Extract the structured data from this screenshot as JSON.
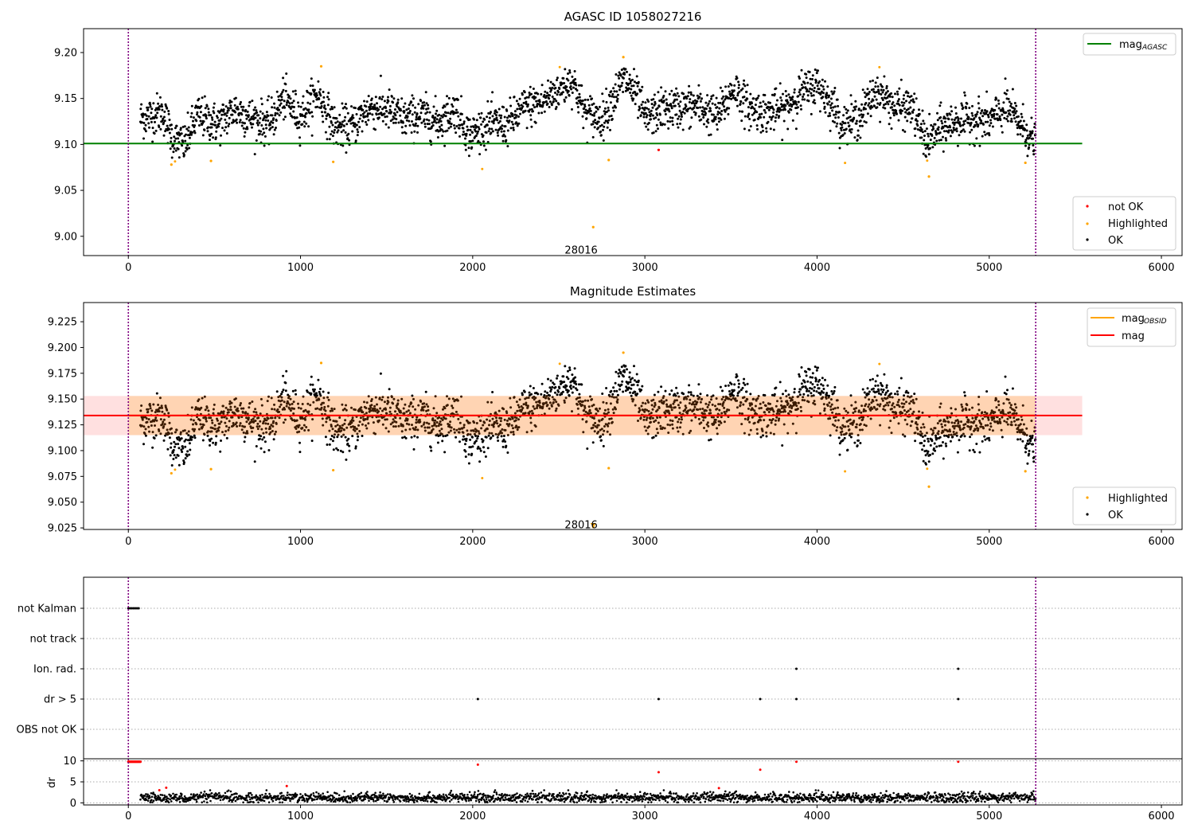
{
  "chart_data": [
    {
      "type": "scatter",
      "title": "AGASC ID 1058027216",
      "xlim": [
        -260,
        6120
      ],
      "ylim": [
        8.979,
        9.226
      ],
      "xticks": [
        "0",
        "1000",
        "2000",
        "3000",
        "4000",
        "5000",
        "6000"
      ],
      "yticks": [
        "9.00",
        "9.05",
        "9.10",
        "9.15",
        "9.20"
      ],
      "vlines": [
        0,
        5270
      ],
      "hline": {
        "y": 9.101,
        "x_range": [
          -260,
          5540
        ],
        "color": "#008000"
      },
      "legend_top": [
        {
          "label": "mag",
          "sub": "AGASC",
          "color": "#008000"
        }
      ],
      "legend_bottom": [
        {
          "label": "not OK",
          "color": "#ff0000"
        },
        {
          "label": "Highlighted",
          "color": "#ffa500"
        },
        {
          "label": "OK",
          "color": "#000000"
        }
      ],
      "annotation": {
        "text": "28016",
        "x": 2630,
        "y": 8.99
      },
      "series_summary": {
        "x_range": [
          70,
          5270
        ],
        "baseline": 9.13,
        "feature_points": [
          {
            "x": 250,
            "y": 9.078,
            "status": "Highlighted"
          },
          {
            "x": 480,
            "y": 9.082,
            "status": "Highlighted"
          },
          {
            "x": 1190,
            "y": 9.081,
            "status": "Highlighted"
          },
          {
            "x": 1120,
            "y": 9.185,
            "status": "Highlighted"
          },
          {
            "x": 2700,
            "y": 9.01,
            "status": "Highlighted"
          },
          {
            "x": 2790,
            "y": 9.083,
            "status": "Highlighted"
          },
          {
            "x": 3080,
            "y": 9.094,
            "status": "not OK"
          },
          {
            "x": 2875,
            "y": 9.195,
            "status": "Highlighted"
          },
          {
            "x": 4650,
            "y": 9.065,
            "status": "Highlighted"
          },
          {
            "x": 5210,
            "y": 9.08,
            "status": "Highlighted"
          }
        ]
      }
    },
    {
      "type": "scatter",
      "title": "Magnitude Estimates",
      "xlim": [
        -260,
        6120
      ],
      "ylim": [
        9.0235,
        9.2436
      ],
      "xticks": [
        "0",
        "1000",
        "2000",
        "3000",
        "4000",
        "5000",
        "6000"
      ],
      "yticks": [
        "9.025",
        "9.050",
        "9.075",
        "9.100",
        "9.125",
        "9.150",
        "9.175",
        "9.200",
        "9.225"
      ],
      "vlines": [
        0,
        5270
      ],
      "mag_line": {
        "y": 9.134,
        "x_range": [
          -260,
          5540
        ],
        "color": "#ff0000"
      },
      "obsid_band": {
        "y_low": 9.115,
        "y_high": 9.153,
        "color": "#ffa500"
      },
      "mag_band": {
        "y_low": 9.115,
        "y_high": 9.153,
        "color": "#ff0000"
      },
      "legend_top": [
        {
          "label": "mag",
          "sub": "OBSID",
          "color": "#ffa500"
        },
        {
          "label": "mag",
          "color": "#ff0000"
        }
      ],
      "legend_bottom": [
        {
          "label": "Highlighted",
          "color": "#ffa500"
        },
        {
          "label": "OK",
          "color": "#000000"
        }
      ],
      "annotation": {
        "text": "28016",
        "x": 2630,
        "y": 9.031
      }
    },
    {
      "type": "scatter",
      "title": "",
      "xlim": [
        -260,
        6120
      ],
      "flag_labels": [
        "not Kalman",
        "not track",
        "Ion. rad.",
        "dr > 5",
        "OBS not OK"
      ],
      "flags": {
        "not Kalman": [
          0,
          10,
          20,
          30,
          40,
          50,
          60
        ],
        "not track": [],
        "Ion. rad.": [
          3880,
          4820
        ],
        "dr > 5": [
          2030,
          3080,
          3670,
          3880,
          4820
        ],
        "OBS not OK": []
      },
      "dr": {
        "ylabel": "dr",
        "ylim": [
          -0.5,
          10.5
        ],
        "yticks": [
          "0",
          "5",
          "10"
        ],
        "xticks": [
          "0",
          "1000",
          "2000",
          "3000",
          "4000",
          "5000",
          "6000"
        ],
        "outliers": [
          {
            "x": 2030,
            "y": 9.1
          },
          {
            "x": 3080,
            "y": 7.3
          },
          {
            "x": 3670,
            "y": 7.9
          },
          {
            "x": 3880,
            "y": 9.8
          },
          {
            "x": 4820,
            "y": 9.8
          },
          {
            "x": 920,
            "y": 4.0
          },
          {
            "x": 3430,
            "y": 3.5
          },
          {
            "x": 180,
            "y": 3.0
          },
          {
            "x": 220,
            "y": 3.6
          }
        ]
      }
    }
  ]
}
